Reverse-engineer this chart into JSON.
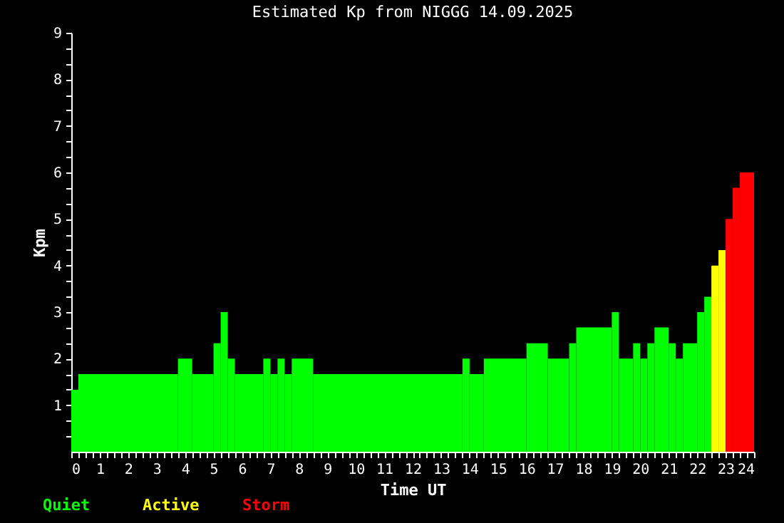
{
  "chart_data": {
    "type": "histogram",
    "title": "Estimated Kp from NIGGG 14.09.2025",
    "xlabel": "Time UT",
    "ylabel": "Kpm",
    "bins": [
      0,
      0.25,
      3.75,
      4.25,
      5,
      5.25,
      5.5,
      5.75,
      6.75,
      7,
      7.25,
      7.5,
      7.75,
      8.5,
      13.75,
      14,
      14.5,
      16,
      16.75,
      17.5,
      17.75,
      19,
      19.25,
      19.75,
      20,
      20.25,
      20.5,
      21,
      21.25,
      21.5,
      22,
      22.25,
      22.5,
      22.75,
      23,
      23.25,
      23.5,
      24
    ],
    "series": [
      {
        "name": "Quiet",
        "color": "#00ff00",
        "values": [
          1.33,
          1.67,
          2,
          1.67,
          2.33,
          3,
          2,
          1.67,
          2,
          1.67,
          2,
          1.67,
          2,
          1.67,
          2,
          1.67,
          2,
          2.33,
          2,
          2.33,
          2.67,
          3,
          2,
          2.33,
          2,
          2.33,
          2.67,
          2.33,
          2,
          2.33,
          3,
          3.33,
          null,
          null,
          null,
          null,
          null
        ]
      },
      {
        "name": "Active",
        "color": "#ffff00",
        "values": [
          null,
          null,
          null,
          null,
          null,
          null,
          null,
          null,
          null,
          null,
          null,
          null,
          null,
          null,
          null,
          null,
          null,
          null,
          null,
          null,
          null,
          null,
          null,
          null,
          null,
          null,
          null,
          null,
          null,
          null,
          null,
          null,
          4,
          4.33,
          null,
          null,
          null
        ]
      },
      {
        "name": "Storm",
        "color": "#ff0000",
        "values": [
          null,
          null,
          null,
          null,
          null,
          null,
          null,
          null,
          null,
          null,
          null,
          null,
          null,
          null,
          null,
          null,
          null,
          null,
          null,
          null,
          null,
          null,
          null,
          null,
          null,
          null,
          null,
          null,
          null,
          null,
          null,
          null,
          null,
          null,
          5,
          5.67,
          6
        ]
      }
    ],
    "xlim": [
      0,
      24
    ],
    "xticks": [
      0,
      {
        "value": 0.25,
        "label": null
      },
      {
        "value": 0.5,
        "label": null
      },
      {
        "value": 0.75,
        "label": null
      },
      1,
      {
        "value": 1.25,
        "label": null
      },
      {
        "value": 1.5,
        "label": null
      },
      {
        "value": 1.75,
        "label": null
      },
      2,
      {
        "value": 2.25,
        "label": null
      },
      {
        "value": 2.5,
        "label": null
      },
      {
        "value": 2.75,
        "label": null
      },
      3,
      {
        "value": 3.25,
        "label": null
      },
      {
        "value": 3.5,
        "label": null
      },
      {
        "value": 3.75,
        "label": null
      },
      4,
      {
        "value": 4.25,
        "label": null
      },
      {
        "value": 4.5,
        "label": null
      },
      {
        "value": 4.75,
        "label": null
      },
      5,
      {
        "value": 5.25,
        "label": null
      },
      {
        "value": 5.5,
        "label": null
      },
      {
        "value": 5.75,
        "label": null
      },
      6,
      {
        "value": 6.25,
        "label": null
      },
      {
        "value": 6.5,
        "label": null
      },
      {
        "value": 6.75,
        "label": null
      },
      7,
      {
        "value": 7.25,
        "label": null
      },
      {
        "value": 7.5,
        "label": null
      },
      {
        "value": 7.75,
        "label": null
      },
      8,
      {
        "value": 8.25,
        "label": null
      },
      {
        "value": 8.5,
        "label": null
      },
      {
        "value": 8.75,
        "label": null
      },
      9,
      {
        "value": 9.25,
        "label": null
      },
      {
        "value": 9.5,
        "label": null
      },
      {
        "value": 9.75,
        "label": null
      },
      10,
      {
        "value": 10.25,
        "label": null
      },
      {
        "value": 10.5,
        "label": null
      },
      {
        "value": 10.75,
        "label": null
      },
      11,
      {
        "value": 11.25,
        "label": null
      },
      {
        "value": 11.5,
        "label": null
      },
      {
        "value": 11.75,
        "label": null
      },
      12,
      {
        "value": 12.25,
        "label": null
      },
      {
        "value": 12.5,
        "label": null
      },
      {
        "value": 12.75,
        "label": null
      },
      13,
      {
        "value": 13.25,
        "label": null
      },
      {
        "value": 13.5,
        "label": null
      },
      {
        "value": 13.75,
        "label": null
      },
      14,
      {
        "value": 14.25,
        "label": null
      },
      {
        "value": 14.5,
        "label": null
      },
      {
        "value": 14.75,
        "label": null
      },
      15,
      {
        "value": 15.25,
        "label": null
      },
      {
        "value": 15.5,
        "label": null
      },
      {
        "value": 15.75,
        "label": null
      },
      16,
      {
        "value": 16.25,
        "label": null
      },
      {
        "value": 16.5,
        "label": null
      },
      {
        "value": 16.75,
        "label": null
      },
      17,
      {
        "value": 17.25,
        "label": null
      },
      {
        "value": 17.5,
        "label": null
      },
      {
        "value": 17.75,
        "label": null
      },
      18,
      {
        "value": 18.25,
        "label": null
      },
      {
        "value": 18.5,
        "label": null
      },
      {
        "value": 18.75,
        "label": null
      },
      19,
      {
        "value": 19.25,
        "label": null
      },
      {
        "value": 19.5,
        "label": null
      },
      {
        "value": 19.75,
        "label": null
      },
      20,
      {
        "value": 20.25,
        "label": null
      },
      {
        "value": 20.5,
        "label": null
      },
      {
        "value": 20.75,
        "label": null
      },
      21,
      {
        "value": 21.25,
        "label": null
      },
      {
        "value": 21.5,
        "label": null
      },
      {
        "value": 21.75,
        "label": null
      },
      22,
      {
        "value": 22.25,
        "label": null
      },
      {
        "value": 22.5,
        "label": null
      },
      {
        "value": 22.75,
        "label": null
      },
      23,
      {
        "value": 23.25,
        "label": null
      },
      {
        "value": 23.5,
        "label": null
      },
      {
        "value": 23.75,
        "label": null
      },
      24
    ],
    "ylim": [
      0,
      9
    ],
    "yticks": [
      {
        "value": 0.333,
        "label": null
      },
      {
        "value": 0.667,
        "label": null
      },
      1,
      {
        "value": 1.333,
        "label": null
      },
      {
        "value": 1.667,
        "label": null
      },
      2,
      {
        "value": 2.333,
        "label": null
      },
      {
        "value": 2.667,
        "label": null
      },
      3,
      {
        "value": 3.333,
        "label": null
      },
      {
        "value": 3.667,
        "label": null
      },
      4,
      {
        "value": 4.333,
        "label": null
      },
      {
        "value": 4.667,
        "label": null
      },
      5,
      {
        "value": 5.333,
        "label": null
      },
      {
        "value": 5.667,
        "label": null
      },
      6,
      {
        "value": 6.333,
        "label": null
      },
      {
        "value": 6.667,
        "label": null
      },
      7,
      {
        "value": 7.333,
        "label": null
      },
      {
        "value": 7.667,
        "label": null
      },
      8,
      {
        "value": 8.333,
        "label": null
      },
      {
        "value": 8.667,
        "label": null
      },
      9
    ],
    "tick_labels": "xy"
  }
}
